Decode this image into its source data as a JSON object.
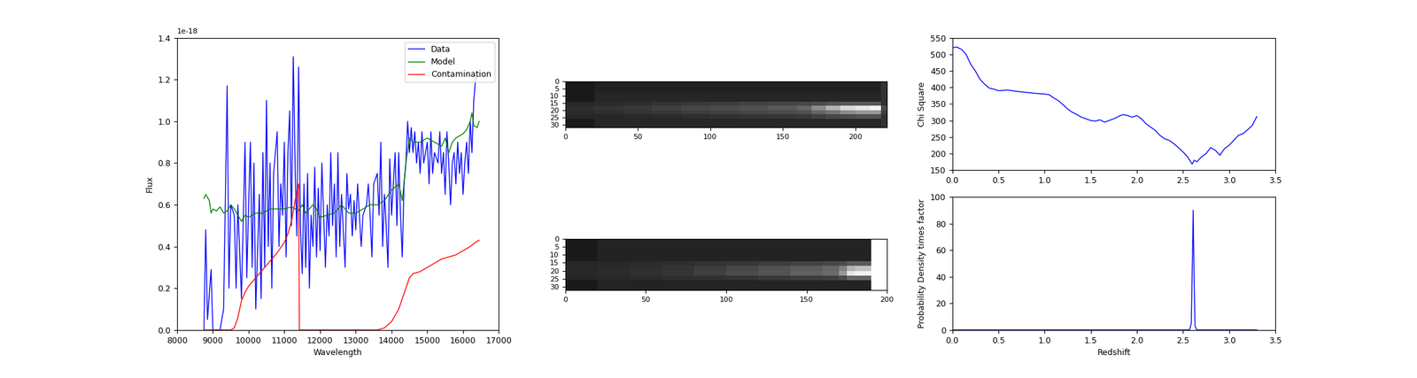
{
  "chart_data": [
    {
      "type": "line",
      "xlabel": "Wavelength",
      "ylabel": "Flux",
      "annotation": "1e-18",
      "xlim": [
        8000,
        17000
      ],
      "xticks": [
        8000,
        9000,
        10000,
        11000,
        12000,
        13000,
        14000,
        15000,
        16000,
        17000
      ],
      "ylim": [
        0.0,
        1.4
      ],
      "yticks": [
        0.0,
        0.2,
        0.4,
        0.6,
        0.8,
        1.0,
        1.2,
        1.4
      ],
      "legend": "upper right",
      "grid": false,
      "series": [
        {
          "name": "Data",
          "color": "#0000ff",
          "x": [
            8750,
            8800,
            8850,
            8950,
            9000,
            9100,
            9200,
            9300,
            9400,
            9450,
            9500,
            9600,
            9650,
            9700,
            9800,
            9900,
            9950,
            10000,
            10050,
            10100,
            10150,
            10200,
            10300,
            10350,
            10400,
            10450,
            10500,
            10550,
            10600,
            10650,
            10700,
            10800,
            10850,
            10900,
            10950,
            11000,
            11050,
            11100,
            11150,
            11200,
            11250,
            11300,
            11350,
            11400,
            11450,
            11500,
            11550,
            11600,
            11650,
            11700,
            11750,
            11800,
            11850,
            11900,
            11950,
            12000,
            12050,
            12100,
            12150,
            12200,
            12250,
            12300,
            12350,
            12400,
            12450,
            12500,
            12550,
            12600,
            12700,
            12750,
            12800,
            12850,
            12900,
            12950,
            13000,
            13050,
            13100,
            13150,
            13200,
            13300,
            13350,
            13400,
            13450,
            13500,
            13600,
            13650,
            13700,
            13750,
            13800,
            13850,
            13900,
            13950,
            14000,
            14050,
            14100,
            14150,
            14200,
            14250,
            14300,
            14350,
            14400,
            14450,
            14500,
            14550,
            14600,
            14650,
            14700,
            14750,
            14800,
            14850,
            14900,
            15000,
            15050,
            15100,
            15150,
            15200,
            15300,
            15350,
            15400,
            15450,
            15500,
            15550,
            15600,
            15650,
            15700,
            15750,
            15800,
            15850,
            15900,
            15950,
            16000,
            16050,
            16100,
            16150,
            16200,
            16250,
            16300,
            16350,
            16400
          ],
          "values": [
            0.0,
            0.48,
            0.05,
            0.29,
            0.0,
            0.0,
            0.0,
            0.1,
            1.17,
            0.2,
            0.6,
            0.55,
            0.2,
            0.6,
            0.15,
            0.9,
            0.25,
            0.6,
            0.9,
            0.3,
            0.8,
            0.1,
            0.65,
            0.15,
            0.85,
            0.3,
            1.1,
            0.4,
            0.8,
            0.2,
            0.75,
            0.95,
            0.4,
            0.7,
            0.55,
            0.9,
            0.35,
            0.85,
            1.05,
            0.5,
            1.31,
            0.8,
            0.45,
            1.26,
            0.5,
            0.27,
            0.7,
            0.3,
            0.75,
            0.2,
            0.55,
            0.4,
            0.78,
            0.35,
            0.68,
            0.38,
            0.8,
            0.55,
            0.3,
            0.6,
            0.45,
            0.85,
            0.5,
            0.7,
            0.35,
            0.85,
            0.4,
            0.65,
            0.3,
            0.75,
            0.58,
            0.65,
            0.45,
            0.62,
            0.48,
            0.7,
            0.55,
            0.4,
            0.55,
            0.6,
            0.7,
            0.55,
            0.35,
            0.7,
            0.75,
            0.55,
            0.9,
            0.4,
            0.65,
            0.5,
            0.3,
            0.82,
            0.55,
            0.7,
            0.85,
            0.5,
            0.85,
            0.55,
            0.35,
            0.7,
            0.8,
            1.0,
            0.85,
            0.97,
            0.85,
            0.95,
            0.8,
            0.9,
            0.75,
            0.95,
            0.8,
            0.9,
            0.7,
            0.95,
            0.75,
            0.85,
            0.8,
            0.95,
            0.75,
            0.85,
            0.65,
            0.95,
            0.8,
            0.6,
            0.8,
            0.85,
            0.7,
            0.9,
            0.75,
            0.85,
            0.65,
            0.8,
            0.9,
            0.75,
            1.0,
            0.85,
            1.1,
            1.2,
            1.22
          ]
        },
        {
          "name": "Model",
          "color": "#008000",
          "x": [
            8750,
            8800,
            8900,
            8950,
            9000,
            9100,
            9200,
            9300,
            9400,
            9500,
            9600,
            9700,
            9800,
            9900,
            10000,
            10200,
            10400,
            10600,
            10800,
            11000,
            11200,
            11400,
            11500,
            11600,
            11800,
            11900,
            12000,
            12200,
            12400,
            12600,
            12800,
            13000,
            13200,
            13400,
            13600,
            13800,
            14000,
            14200,
            14300,
            14400,
            14500,
            14600,
            14800,
            15000,
            15200,
            15400,
            15500,
            15600,
            15700,
            15800,
            16000,
            16100,
            16200,
            16250,
            16300,
            16400,
            16450
          ],
          "values": [
            0.63,
            0.65,
            0.62,
            0.56,
            0.58,
            0.57,
            0.59,
            0.56,
            0.57,
            0.6,
            0.58,
            0.55,
            0.52,
            0.55,
            0.54,
            0.56,
            0.56,
            0.58,
            0.58,
            0.58,
            0.59,
            0.57,
            0.6,
            0.56,
            0.6,
            0.58,
            0.54,
            0.55,
            0.56,
            0.6,
            0.56,
            0.56,
            0.58,
            0.6,
            0.6,
            0.62,
            0.67,
            0.7,
            0.62,
            0.8,
            0.92,
            0.9,
            0.9,
            0.92,
            0.9,
            0.88,
            0.92,
            0.85,
            0.9,
            0.92,
            0.94,
            0.96,
            1.0,
            1.04,
            0.98,
            0.97,
            1.0
          ]
        },
        {
          "name": "Contamination",
          "color": "#ff0000",
          "x": [
            8750,
            9500,
            9600,
            9700,
            9800,
            9900,
            10000,
            10200,
            10400,
            10600,
            10800,
            11000,
            11100,
            11200,
            11300,
            11400,
            11420,
            13600,
            13800,
            14000,
            14200,
            14400,
            14500,
            14600,
            14800,
            15000,
            15200,
            15400,
            15600,
            15800,
            16000,
            16200,
            16350,
            16450
          ],
          "values": [
            0.0,
            0.0,
            0.01,
            0.06,
            0.14,
            0.18,
            0.21,
            0.25,
            0.29,
            0.33,
            0.37,
            0.42,
            0.46,
            0.52,
            0.62,
            0.7,
            0.0,
            0.0,
            0.01,
            0.04,
            0.1,
            0.2,
            0.25,
            0.27,
            0.28,
            0.3,
            0.32,
            0.34,
            0.35,
            0.36,
            0.38,
            0.4,
            0.42,
            0.43
          ]
        }
      ]
    },
    {
      "type": "heatmap",
      "xlim": [
        0,
        222
      ],
      "xticks": [
        0,
        50,
        100,
        150,
        200
      ],
      "ylim": [
        32,
        0
      ],
      "yticks": [
        0,
        5,
        10,
        15,
        20,
        25,
        30
      ],
      "cell_range": [
        0,
        1
      ],
      "x_edges": [
        0,
        20,
        40,
        60,
        80,
        100,
        120,
        140,
        160,
        170,
        180,
        190,
        200,
        210,
        218,
        222
      ],
      "y_edges": [
        0,
        8,
        14,
        17,
        20,
        23,
        26,
        32
      ],
      "cells": [
        [
          0.1,
          0.13,
          0.13,
          0.13,
          0.13,
          0.13,
          0.13,
          0.13,
          0.13,
          0.13,
          0.13,
          0.13,
          0.13,
          0.13,
          0.2
        ],
        [
          0.1,
          0.15,
          0.15,
          0.15,
          0.15,
          0.15,
          0.15,
          0.15,
          0.15,
          0.15,
          0.15,
          0.15,
          0.15,
          0.15,
          0.2
        ],
        [
          0.16,
          0.17,
          0.18,
          0.2,
          0.22,
          0.24,
          0.26,
          0.27,
          0.28,
          0.3,
          0.33,
          0.35,
          0.35,
          0.35,
          0.2
        ],
        [
          0.18,
          0.2,
          0.22,
          0.25,
          0.28,
          0.3,
          0.32,
          0.35,
          0.4,
          0.55,
          0.7,
          0.85,
          0.9,
          0.95,
          0.3
        ],
        [
          0.17,
          0.18,
          0.2,
          0.22,
          0.24,
          0.26,
          0.28,
          0.3,
          0.32,
          0.4,
          0.45,
          0.55,
          0.6,
          0.6,
          0.25
        ],
        [
          0.15,
          0.15,
          0.16,
          0.17,
          0.18,
          0.19,
          0.2,
          0.21,
          0.22,
          0.25,
          0.28,
          0.3,
          0.32,
          0.32,
          0.2
        ],
        [
          0.1,
          0.15,
          0.15,
          0.15,
          0.15,
          0.15,
          0.15,
          0.15,
          0.15,
          0.15,
          0.15,
          0.15,
          0.15,
          0.15,
          0.2
        ]
      ]
    },
    {
      "type": "heatmap",
      "xlim": [
        0,
        200
      ],
      "xticks": [
        0,
        50,
        100,
        150,
        200
      ],
      "ylim": [
        32,
        0
      ],
      "yticks": [
        0,
        5,
        10,
        15,
        20,
        25,
        30
      ],
      "cell_range": [
        0,
        1
      ],
      "x_edges": [
        0,
        20,
        40,
        60,
        80,
        100,
        120,
        140,
        160,
        170,
        175,
        180,
        190
      ],
      "y_edges": [
        0,
        8,
        14,
        17,
        20,
        23,
        26,
        32
      ],
      "cells": [
        [
          0.1,
          0.14,
          0.14,
          0.14,
          0.14,
          0.14,
          0.14,
          0.14,
          0.14,
          0.14,
          0.14,
          0.14
        ],
        [
          0.1,
          0.14,
          0.14,
          0.14,
          0.14,
          0.14,
          0.14,
          0.14,
          0.14,
          0.14,
          0.14,
          0.14
        ],
        [
          0.15,
          0.16,
          0.17,
          0.18,
          0.2,
          0.22,
          0.24,
          0.26,
          0.28,
          0.3,
          0.35,
          0.35
        ],
        [
          0.16,
          0.17,
          0.18,
          0.2,
          0.24,
          0.28,
          0.32,
          0.36,
          0.4,
          0.5,
          0.7,
          0.75
        ],
        [
          0.16,
          0.17,
          0.19,
          0.21,
          0.25,
          0.3,
          0.33,
          0.38,
          0.42,
          0.6,
          0.9,
          0.95
        ],
        [
          0.15,
          0.16,
          0.17,
          0.18,
          0.19,
          0.2,
          0.22,
          0.24,
          0.25,
          0.3,
          0.4,
          0.4
        ],
        [
          0.1,
          0.14,
          0.14,
          0.14,
          0.14,
          0.14,
          0.14,
          0.14,
          0.14,
          0.14,
          0.14,
          0.14
        ]
      ]
    },
    {
      "type": "line",
      "ylabel": "Chi Square",
      "color": "#0000ff",
      "xlim": [
        0.0,
        3.5
      ],
      "xticks": [
        0.0,
        0.5,
        1.0,
        1.5,
        2.0,
        2.5,
        3.0,
        3.5
      ],
      "ylim": [
        150,
        550
      ],
      "yticks": [
        150,
        200,
        250,
        300,
        350,
        400,
        450,
        500,
        550
      ],
      "x": [
        0.0,
        0.05,
        0.1,
        0.15,
        0.2,
        0.25,
        0.3,
        0.35,
        0.4,
        0.45,
        0.5,
        0.6,
        0.7,
        0.8,
        0.9,
        1.0,
        1.05,
        1.1,
        1.15,
        1.2,
        1.25,
        1.3,
        1.35,
        1.4,
        1.45,
        1.5,
        1.55,
        1.6,
        1.65,
        1.7,
        1.75,
        1.8,
        1.85,
        1.9,
        1.95,
        2.0,
        2.05,
        2.1,
        2.15,
        2.2,
        2.25,
        2.3,
        2.35,
        2.4,
        2.45,
        2.5,
        2.55,
        2.6,
        2.62,
        2.65,
        2.7,
        2.75,
        2.8,
        2.85,
        2.9,
        2.95,
        3.0,
        3.05,
        3.1,
        3.15,
        3.2,
        3.25,
        3.3
      ],
      "values": [
        520,
        522,
        515,
        500,
        470,
        450,
        425,
        410,
        398,
        395,
        390,
        392,
        388,
        385,
        382,
        380,
        378,
        368,
        360,
        348,
        335,
        325,
        318,
        310,
        305,
        300,
        298,
        302,
        295,
        300,
        305,
        312,
        318,
        315,
        310,
        315,
        305,
        290,
        280,
        270,
        255,
        245,
        240,
        230,
        218,
        205,
        190,
        168,
        180,
        175,
        190,
        200,
        218,
        210,
        195,
        215,
        225,
        240,
        255,
        260,
        272,
        285,
        312
      ]
    },
    {
      "type": "line",
      "xlabel": "Redshift",
      "ylabel": "Probability Density times factor",
      "color": "#0000ff",
      "xlim": [
        0.0,
        3.5
      ],
      "xticks": [
        0.0,
        0.5,
        1.0,
        1.5,
        2.0,
        2.5,
        3.0,
        3.5
      ],
      "ylim": [
        0,
        100
      ],
      "yticks": [
        0,
        20,
        40,
        60,
        80,
        100
      ],
      "x": [
        0.0,
        2.57,
        2.59,
        2.6,
        2.61,
        2.62,
        2.63,
        2.65,
        3.3
      ],
      "values": [
        0,
        0,
        5,
        45,
        90,
        40,
        3,
        0,
        0
      ]
    }
  ]
}
